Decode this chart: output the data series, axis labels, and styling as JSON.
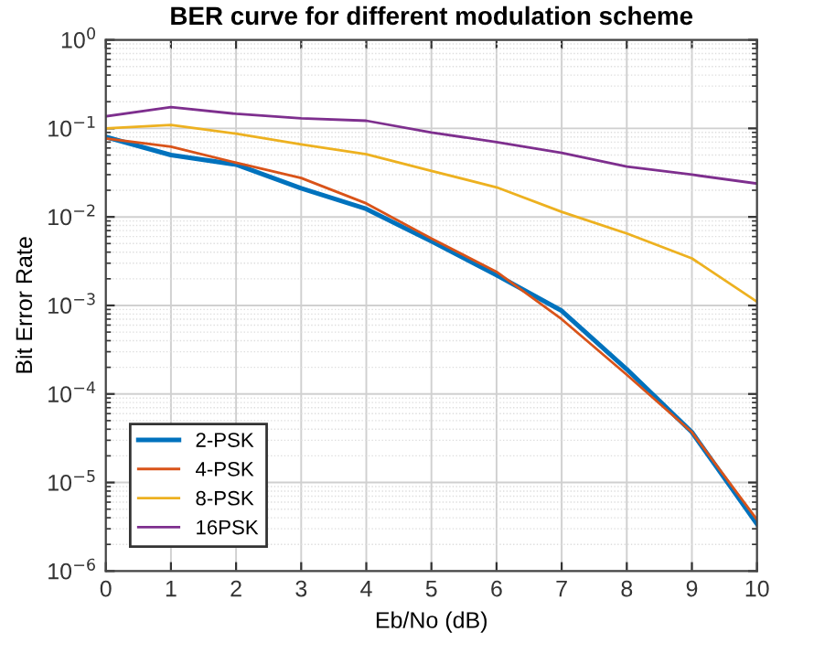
{
  "chart_data": {
    "type": "line",
    "title": "BER curve for different modulation scheme",
    "xlabel": "Eb/No (dB)",
    "ylabel": "Bit Error Rate",
    "x": [
      0,
      1,
      2,
      3,
      4,
      5,
      6,
      7,
      8,
      9,
      10
    ],
    "series": [
      {
        "name": "2-PSK",
        "color": "#0072bd",
        "values": [
          0.08,
          0.05,
          0.039,
          0.021,
          0.0123,
          0.0053,
          0.0022,
          0.00087,
          0.00019,
          3.7e-05,
          3.4e-06
        ]
      },
      {
        "name": "4-PSK",
        "color": "#d95319",
        "values": [
          0.077,
          0.062,
          0.041,
          0.0275,
          0.0142,
          0.0057,
          0.0024,
          0.0007,
          0.000165,
          3.7e-05,
          3.8e-06
        ]
      },
      {
        "name": "8-PSK",
        "color": "#edb120",
        "values": [
          0.1,
          0.109,
          0.087,
          0.066,
          0.051,
          0.033,
          0.0216,
          0.0114,
          0.0065,
          0.0034,
          0.0011
        ]
      },
      {
        "name": "16PSK",
        "color": "#7e2f8e",
        "values": [
          0.137,
          0.174,
          0.146,
          0.13,
          0.122,
          0.09,
          0.07,
          0.053,
          0.037,
          0.03,
          0.0238
        ]
      }
    ],
    "log": "y",
    "xlim": [
      0,
      10
    ],
    "ylim": [
      1e-06,
      1
    ],
    "xticks": [
      0,
      1,
      2,
      3,
      4,
      5,
      6,
      7,
      8,
      9,
      10
    ],
    "yticks": [
      {
        "value": 1e-06,
        "label": "10$^{−6}$"
      },
      {
        "value": 1e-05,
        "label": "10$^{−5}$"
      },
      {
        "value": 0.0001,
        "label": "10$^{−4}$"
      },
      {
        "value": 0.001,
        "label": "10$^{−3}$"
      },
      {
        "value": 0.01,
        "label": "10$^{−2}$"
      },
      {
        "value": 0.1,
        "label": "10$^{−1}$"
      },
      {
        "value": 1,
        "label": "10$^{0}$"
      }
    ],
    "grid": true,
    "legend": "bottom left",
    "marker": "none",
    "line_style": "solid"
  }
}
